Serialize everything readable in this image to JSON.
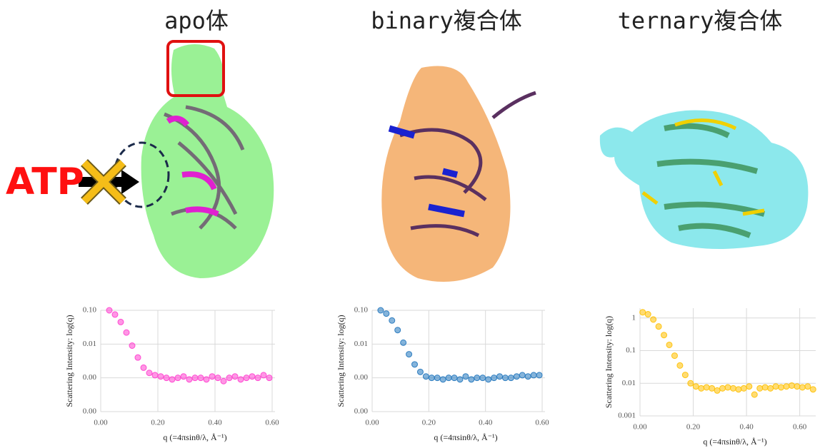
{
  "chart_data": [
    {
      "type": "scatter",
      "title": "apo体",
      "annotation": "ATP",
      "color": "#ff3fcf",
      "log_y": true,
      "grid": true,
      "y_label": "Scattering Intensity: log(q)",
      "x_label": "q (=4πsinθ/λ, Å⁻¹)",
      "x": [
        0.03,
        0.05,
        0.07,
        0.09,
        0.11,
        0.13,
        0.15,
        0.17,
        0.19,
        0.21,
        0.23,
        0.25,
        0.27,
        0.29,
        0.31,
        0.33,
        0.35,
        0.37,
        0.39,
        0.41,
        0.43,
        0.45,
        0.47,
        0.49,
        0.51,
        0.53,
        0.55,
        0.57,
        0.59
      ],
      "values": [
        0.1,
        0.075,
        0.045,
        0.022,
        0.009,
        0.004,
        0.002,
        0.0014,
        0.0012,
        0.0011,
        0.001,
        0.0009,
        0.001,
        0.0011,
        0.0009,
        0.001,
        0.001,
        0.0009,
        0.0011,
        0.001,
        0.0008,
        0.001,
        0.0011,
        0.0009,
        0.001,
        0.0011,
        0.001,
        0.0012,
        0.001
      ],
      "xlim": [
        0,
        0.61
      ],
      "xticks": [
        {
          "value": 0,
          "label": "0.00"
        },
        {
          "value": 0.2,
          "label": "0.20"
        },
        {
          "value": 0.4,
          "label": "0.40"
        },
        {
          "value": 0.6,
          "label": "0.60"
        }
      ],
      "ylim": [
        0.0001,
        0.1
      ],
      "yticks": [
        {
          "value": 0.1,
          "label": "0.10"
        },
        {
          "value": 0.01,
          "label": "0.01"
        },
        {
          "value": 0.001,
          "label": "0.00"
        },
        {
          "value": 0.0001,
          "label": "0.00"
        }
      ]
    },
    {
      "type": "scatter",
      "title": "binary複合体",
      "color": "#2176bd",
      "log_y": true,
      "grid": true,
      "y_label": "Scattering Intensity: log(q)",
      "x_label": "q (=4πsinθ/λ, Å⁻¹)",
      "x": [
        0.03,
        0.05,
        0.07,
        0.09,
        0.11,
        0.13,
        0.15,
        0.17,
        0.19,
        0.21,
        0.23,
        0.25,
        0.27,
        0.29,
        0.31,
        0.33,
        0.35,
        0.37,
        0.39,
        0.41,
        0.43,
        0.45,
        0.47,
        0.49,
        0.51,
        0.53,
        0.55,
        0.57,
        0.59
      ],
      "values": [
        0.1,
        0.08,
        0.05,
        0.026,
        0.011,
        0.005,
        0.0025,
        0.0015,
        0.0011,
        0.001,
        0.001,
        0.0009,
        0.001,
        0.001,
        0.0009,
        0.0011,
        0.0009,
        0.001,
        0.001,
        0.0009,
        0.001,
        0.0011,
        0.001,
        0.001,
        0.0011,
        0.0012,
        0.0011,
        0.0012,
        0.0012
      ],
      "xlim": [
        0,
        0.61
      ],
      "xticks": [
        {
          "value": 0,
          "label": "0.00"
        },
        {
          "value": 0.2,
          "label": "0.20"
        },
        {
          "value": 0.4,
          "label": "0.40"
        },
        {
          "value": 0.6,
          "label": "0.60"
        }
      ],
      "ylim": [
        0.0001,
        0.1
      ],
      "yticks": [
        {
          "value": 0.1,
          "label": "0.10"
        },
        {
          "value": 0.01,
          "label": "0.01"
        },
        {
          "value": 0.001,
          "label": "0.00"
        },
        {
          "value": 0.0001,
          "label": "0.00"
        }
      ]
    },
    {
      "type": "scatter",
      "title": "ternary複合体",
      "color": "#ffc000",
      "log_y": true,
      "grid": true,
      "y_label": "Scattering Intensity: log(q)",
      "x_label": "q (=4πsinθ/λ, Å⁻¹)",
      "x": [
        0.01,
        0.03,
        0.05,
        0.07,
        0.09,
        0.11,
        0.13,
        0.15,
        0.17,
        0.19,
        0.21,
        0.23,
        0.25,
        0.27,
        0.29,
        0.31,
        0.33,
        0.35,
        0.37,
        0.39,
        0.41,
        0.43,
        0.45,
        0.47,
        0.49,
        0.51,
        0.53,
        0.55,
        0.57,
        0.59,
        0.61,
        0.63,
        0.65
      ],
      "values": [
        1.5,
        1.3,
        0.9,
        0.55,
        0.3,
        0.15,
        0.07,
        0.035,
        0.018,
        0.01,
        0.008,
        0.007,
        0.0075,
        0.007,
        0.006,
        0.007,
        0.0075,
        0.007,
        0.0065,
        0.007,
        0.008,
        0.0045,
        0.007,
        0.0075,
        0.007,
        0.008,
        0.0075,
        0.008,
        0.0085,
        0.008,
        0.0075,
        0.008,
        0.0065
      ],
      "xlim": [
        0,
        0.66
      ],
      "xticks": [
        {
          "value": 0,
          "label": "0.00"
        },
        {
          "value": 0.2,
          "label": "0.20"
        },
        {
          "value": 0.4,
          "label": "0.40"
        },
        {
          "value": 0.6,
          "label": "0.60"
        }
      ],
      "ylim": [
        0.001,
        2
      ],
      "yticks": [
        1,
        0.1,
        0.01,
        0.001
      ]
    }
  ]
}
